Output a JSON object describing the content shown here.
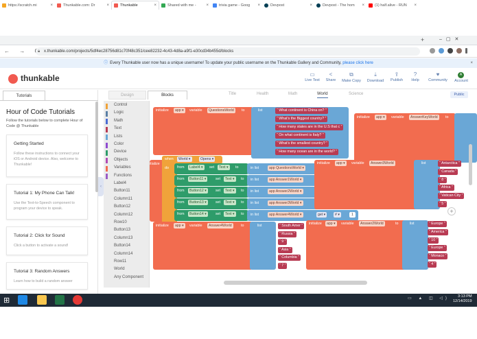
{
  "browser": {
    "tabs": [
      {
        "title": "https://scratch.mi"
      },
      {
        "title": "Thunkable.com: Dr"
      },
      {
        "title": "Thunkable"
      },
      {
        "title": "Shared with me -"
      },
      {
        "title": "trivia game - Goog"
      },
      {
        "title": "Devpost"
      },
      {
        "title": "Devpost - The hom"
      },
      {
        "title": "(1) half.alive - RUN"
      }
    ],
    "new_tab": "+",
    "url": "x.thunkable.com/projects/5df4ec28756d81c70f48c351/cee82232-4c43-4d8a-a9f1-e30cd34b455d/blocks",
    "nav_icons": "← → C"
  },
  "banner": {
    "text": "Every Thunkable user now has a unique username! To update your public username on the Thunkable Gallery and Community,",
    "link": "please click here",
    "close": "×"
  },
  "header": {
    "brand": "thunkable",
    "tools": [
      {
        "label": "Live Test",
        "icon": "▭"
      },
      {
        "label": "Share",
        "icon": "<"
      },
      {
        "label": "Make Copy",
        "icon": "⧉"
      },
      {
        "label": "Download",
        "icon": "⤓"
      },
      {
        "label": "Publish",
        "icon": "⇪"
      },
      {
        "label": "Help",
        "icon": "?"
      },
      {
        "label": "Community",
        "icon": "♥"
      },
      {
        "label": "Account",
        "icon": ""
      }
    ],
    "account_initial": "A"
  },
  "tutorials": {
    "tab": "Tutorials",
    "title": "Hour of Code Tutorials",
    "subtitle": "Follow the tutorials below to complete Hour of Code @ Thunkable",
    "cards": [
      {
        "title": "Getting Started",
        "desc": "Follow these instructions to connect your iOS or Android device. Also, welcome to Thunkable!"
      },
      {
        "title": "Tutorial 1: My Phone Can Talk!",
        "desc": "Use the Text-to-Speech component to program your device to speak."
      },
      {
        "title": "Tutorial 2: Click for Sound",
        "desc": "Click a button to activate a sound!"
      },
      {
        "title": "Tutorial 3: Random Answers",
        "desc": "Learn how to build a random answer"
      }
    ]
  },
  "editor": {
    "tab_design": "Design",
    "tab_blocks": "Blocks",
    "screens": [
      "Title",
      "Health",
      "Math",
      "World",
      "Science"
    ],
    "active_screen": "World",
    "public": "Public",
    "palette": [
      {
        "label": "Control",
        "color": "#f0a33a"
      },
      {
        "label": "Logic",
        "color": "#5b80a5"
      },
      {
        "label": "Math",
        "color": "#4a6cd4"
      },
      {
        "label": "Text",
        "color": "#b83b53"
      },
      {
        "label": "Lists",
        "color": "#6aa7d6"
      },
      {
        "label": "Color",
        "color": "#8f4bd0"
      },
      {
        "label": "Device",
        "color": "#2e9c6a"
      },
      {
        "label": "Objects",
        "color": "#b04ab5"
      },
      {
        "label": "Variables",
        "color": "#f26c4f"
      },
      {
        "label": "Functions",
        "color": "#9a5cc6"
      },
      {
        "label": "Label4",
        "color": ""
      },
      {
        "label": "Button11",
        "color": ""
      },
      {
        "label": "Column11",
        "color": ""
      },
      {
        "label": "Button12",
        "color": ""
      },
      {
        "label": "Column12",
        "color": ""
      },
      {
        "label": "Row10",
        "color": ""
      },
      {
        "label": "Button13",
        "color": ""
      },
      {
        "label": "Column13",
        "color": ""
      },
      {
        "label": "Button14",
        "color": ""
      },
      {
        "label": "Column14",
        "color": ""
      },
      {
        "label": "Row11",
        "color": ""
      },
      {
        "label": "World",
        "color": ""
      },
      {
        "label": "Any Component",
        "color": ""
      }
    ]
  },
  "blocks": {
    "initialize": "initialize",
    "app": "app ▾",
    "variable": "variable",
    "to": "to",
    "list": "list",
    "questions_var": "QuestionsWorld",
    "questions": [
      "What continent is China on?",
      "What's the Biggest country?",
      "How many states are in the U.S that c",
      "On what continent is Italy?",
      "What's the smallest country?",
      "How many ocean are in the world?"
    ],
    "answerkey_var": "AnswerKeyWorld",
    "answer3_var": "Answer3World",
    "answer3": [
      "Antarctica",
      "Canada",
      "8",
      "Africa",
      "Vatican City",
      "5"
    ],
    "answer4_var": "Answer4World",
    "answer4": [
      "South Amer",
      "Russia",
      "9",
      "Asia",
      "Columbia",
      "7"
    ],
    "answer2_var": "Answer2World",
    "answer2": [
      "Europe",
      "America",
      "10",
      "Europe",
      "Monaco",
      "4"
    ],
    "event_when": "when",
    "event_world": "World ▾",
    "event_opens": "Opens ▾",
    "do": "do",
    "from": "from",
    "set": "set",
    "text_prop": "Text ▾",
    "in_list": "in list",
    "get": "get ▾",
    "hash": "# ▾",
    "one": "1",
    "setters": [
      {
        "comp": "Label4 ▾",
        "list": "app QuestionsWorld ▾"
      },
      {
        "comp": "Button11 ▾",
        "list": "app Answer1World ▾"
      },
      {
        "comp": "Button12 ▾",
        "list": "app Answer2World ▾"
      },
      {
        "comp": "Button13 ▾",
        "list": "app Answer3World ▾"
      },
      {
        "comp": "Button14 ▾",
        "list": "app Answer4World ▾"
      }
    ],
    "zoom_in": "+"
  },
  "taskbar": {
    "start": "⊞",
    "tray": "▭ ▲ ◫ ◁)",
    "time": "3:13 PM",
    "date": "12/14/2019"
  }
}
